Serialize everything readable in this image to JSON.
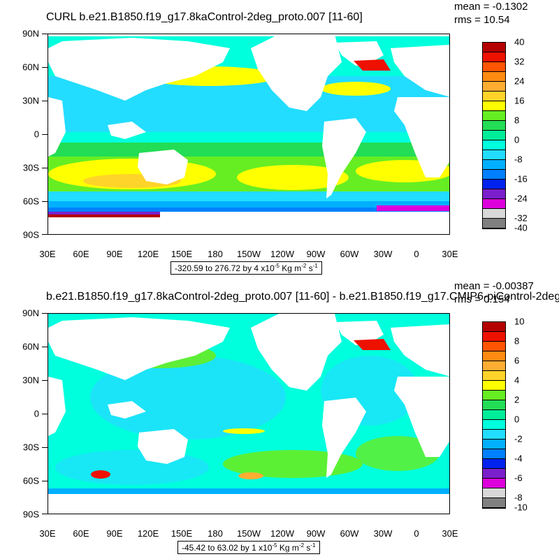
{
  "panels": [
    {
      "title": "CURL b.e21.B1850.f19_g17.8kaControl-2deg_proto.007 [11-60]",
      "mean": "mean = -0.1302",
      "rms": "rms = 10.54",
      "range_prefix": "-320.59 to 276.72 by 4 x10",
      "range_exp": "-5",
      "range_unit": " Kg m",
      "range_unit_exp": "-2",
      "range_suffix": " s",
      "range_suffix_exp": "-1",
      "colorbar_labels": [
        "40",
        "32",
        "24",
        "16",
        "8",
        "0",
        "-8",
        "-16",
        "-24",
        "-32",
        "-40"
      ]
    },
    {
      "title": "b.e21.B1850.f19_g17.8kaControl-2deg_proto.007 [11-60] - b.e21.B1850.f19_g17.CMIP6-piControl-2deg",
      "mean": "mean = -0.00387",
      "rms": "rms = 0.154",
      "range_prefix": "-45.42 to 63.02 by 1 x10",
      "range_exp": "-5",
      "range_unit": " Kg m",
      "range_unit_exp": "-2",
      "range_suffix": " s",
      "range_suffix_exp": "-1",
      "colorbar_labels": [
        "10",
        "8",
        "6",
        "4",
        "2",
        "0",
        "-2",
        "-4",
        "-6",
        "-8",
        "-10"
      ]
    }
  ],
  "axes": {
    "y_ticks": [
      "90N",
      "60N",
      "30N",
      "0",
      "30S",
      "60S",
      "90S"
    ],
    "x_ticks": [
      "30E",
      "60E",
      "90E",
      "120E",
      "150E",
      "180",
      "150W",
      "120W",
      "90W",
      "60W",
      "30W",
      "0",
      "30E"
    ]
  },
  "colors": {
    "colorbar": [
      "#b40000",
      "#ee1100",
      "#ff5500",
      "#ff8b12",
      "#ffad32",
      "#ffd42a",
      "#ffff00",
      "#66ee22",
      "#22dd55",
      "#00ee99",
      "#00ffdd",
      "#22ddff",
      "#00b0ff",
      "#0080ff",
      "#0022ee",
      "#7b1fcc",
      "#dd00dd",
      "#d8d8d8",
      "#808080"
    ],
    "land": "#ffffff",
    "ocean_base_top": "#22ddff",
    "ocean_base_bottom": "#00ffdd"
  }
}
